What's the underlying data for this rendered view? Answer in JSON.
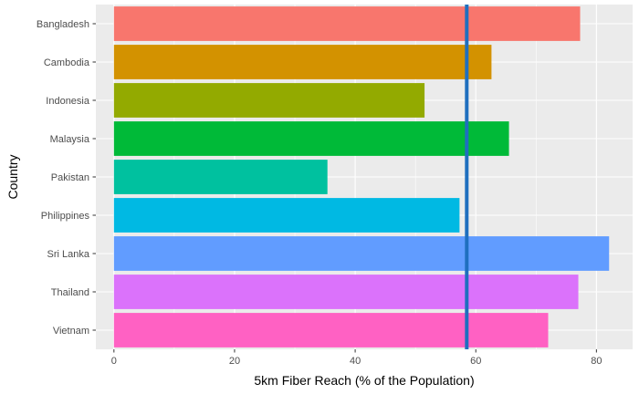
{
  "chart_data": {
    "type": "bar",
    "orientation": "horizontal",
    "categories": [
      "Bangladesh",
      "Cambodia",
      "Indonesia",
      "Malaysia",
      "Pakistan",
      "Philippines",
      "Sri Lanka",
      "Thailand",
      "Vietnam"
    ],
    "values": [
      77.3,
      62.6,
      51.5,
      65.5,
      35.4,
      57.3,
      82.1,
      77.0,
      72.0
    ],
    "colors": [
      "#F8766D",
      "#D39200",
      "#93AA00",
      "#00BA38",
      "#00C19F",
      "#00B9E3",
      "#619CFF",
      "#DB72FB",
      "#FF61C3"
    ],
    "reference_line": {
      "x": 58.5,
      "color": "#1F6FBF"
    },
    "xlabel": "5km Fiber Reach (% of the Population)",
    "ylabel": "Country",
    "xlim": [
      -3,
      86
    ],
    "xticks": [
      0,
      20,
      40,
      60,
      80
    ],
    "grid": true,
    "panel_background": "#EBEBEB"
  }
}
